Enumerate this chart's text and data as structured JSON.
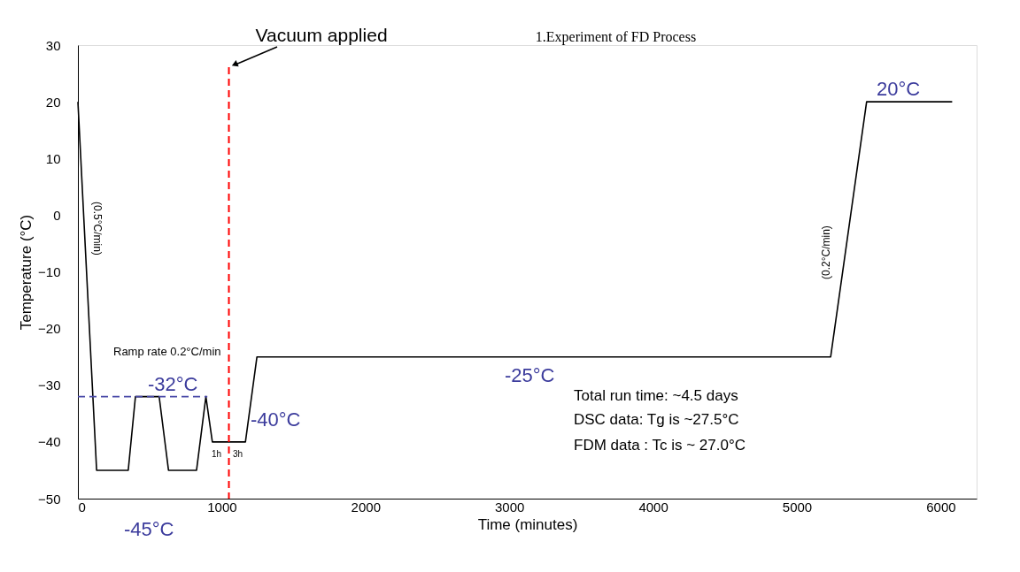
{
  "chart_data": {
    "type": "line",
    "title": "1.Experiment of FD Process",
    "xlabel": "Time (minutes)",
    "ylabel": "Temperature (°C)",
    "xlim": [
      0,
      6250
    ],
    "ylim": [
      -50,
      30
    ],
    "xticks": [
      0,
      1000,
      2000,
      3000,
      4000,
      5000,
      6000
    ],
    "yticks": [
      -50,
      -40,
      -30,
      -20,
      -10,
      0,
      10,
      20,
      30
    ],
    "grid": false,
    "marker": "none",
    "series": [
      {
        "color": "#000000",
        "line_style": "solid",
        "x": [
          0,
          130,
          350,
          400,
          565,
          630,
          825,
          890,
          935,
          1165,
          1245,
          5235,
          5485,
          6080
        ],
        "values": [
          20,
          -45,
          -45,
          -32,
          -32,
          -45,
          -45,
          -32,
          -40,
          -40,
          -25,
          -25,
          20,
          20
        ]
      },
      {
        "color": "#4a4aa8",
        "line_style": "dashed",
        "x": [
          0,
          900
        ],
        "values": [
          -32,
          -32
        ]
      }
    ],
    "ref_lines": [
      {
        "axis": "x",
        "value": 1050,
        "label": "Vacuum applied",
        "color": "#ff0000",
        "line_style": "dashed"
      }
    ],
    "annotations": [
      "-32°C",
      "-40°C",
      "-45°C",
      "-25°C",
      "20°C",
      "(0.5°C/min)",
      "(0.2°C/min)",
      "Ramp rate 0.2°C/min",
      "1h",
      "3h",
      "Total run time: ~4.5 days",
      "DSC data: Tg is ~27.5°C",
      "FDM data : Tc is ~ 27.0°C"
    ]
  }
}
